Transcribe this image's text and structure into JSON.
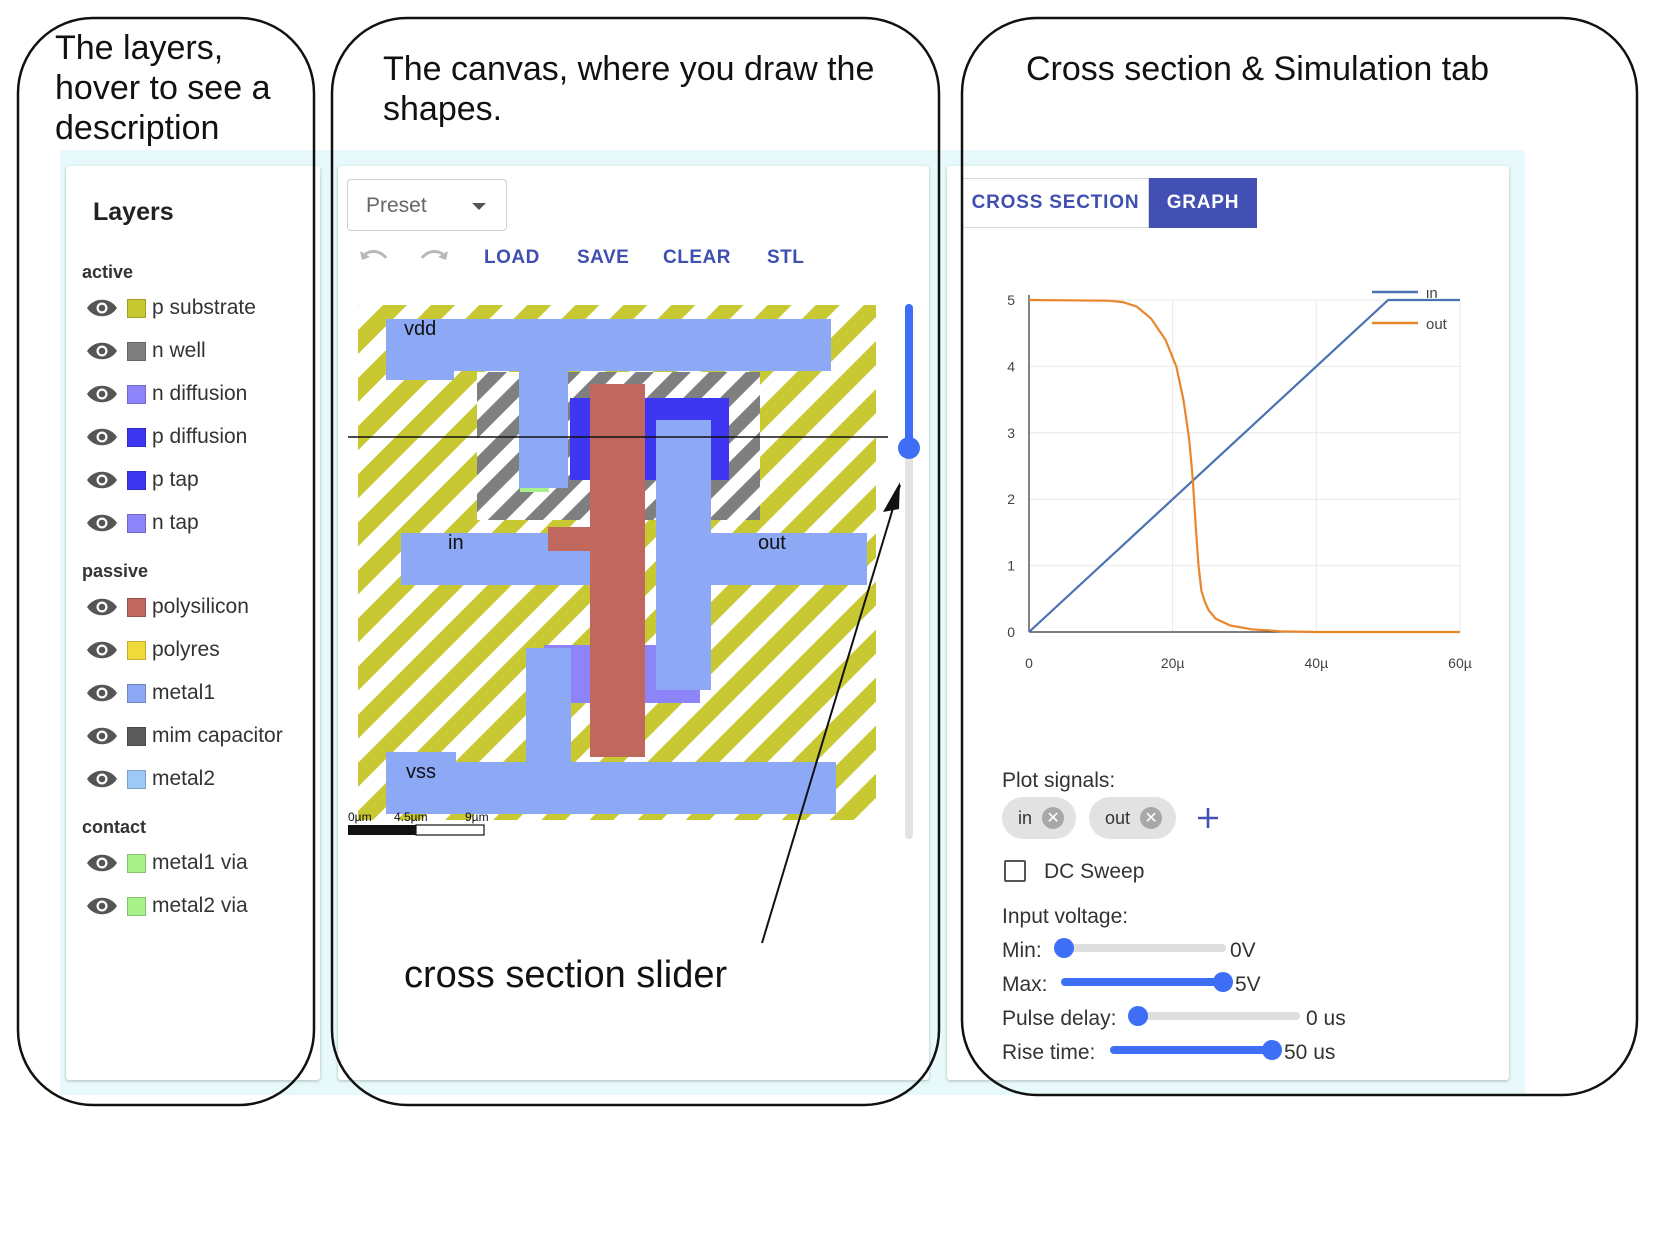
{
  "annotations": {
    "layers": "The layers, hover to see a description",
    "canvas": "The canvas, where you draw the shapes.",
    "simulation": "Cross section & Simulation tab",
    "slider": "cross section slider"
  },
  "layers": {
    "title": "Layers",
    "groups": [
      {
        "label": "active",
        "items": [
          {
            "label": "p substrate",
            "color": "#c8c832",
            "icon": "eye-icon"
          },
          {
            "label": "n well",
            "color": "#7f7f7f",
            "icon": "eye-icon"
          },
          {
            "label": "n diffusion",
            "color": "#8c84f8",
            "icon": "eye-icon"
          },
          {
            "label": "p diffusion",
            "color": "#3e37f2",
            "icon": "eye-icon"
          },
          {
            "label": "p tap",
            "color": "#3e37f2",
            "icon": "eye-icon"
          },
          {
            "label": "n tap",
            "color": "#8c84f8",
            "icon": "eye-icon"
          }
        ]
      },
      {
        "label": "passive",
        "items": [
          {
            "label": "polysilicon",
            "color": "#c0675e",
            "icon": "eye-icon"
          },
          {
            "label": "polyres",
            "color": "#f0d93a",
            "icon": "eye-icon"
          },
          {
            "label": "metal1",
            "color": "#8da8f4",
            "icon": "eye-icon"
          },
          {
            "label": "mim capacitor",
            "color": "#5a5a5a",
            "icon": "eye-icon"
          },
          {
            "label": "metal2",
            "color": "#9ec9f7",
            "icon": "eye-icon"
          }
        ]
      },
      {
        "label": "contact",
        "items": [
          {
            "label": "metal1 via",
            "color": "#a8f08a",
            "icon": "eye-icon"
          },
          {
            "label": "metal2 via",
            "color": "#a8f08a",
            "icon": "eye-icon"
          }
        ]
      }
    ]
  },
  "toolbar": {
    "preset": "Preset",
    "undo_icon": "undo-icon",
    "redo_icon": "redo-icon",
    "load": "LOAD",
    "save": "SAVE",
    "clear": "CLEAR",
    "stl": "STL"
  },
  "canvas": {
    "labels": {
      "vdd": "vdd",
      "in": "in",
      "out": "out",
      "vss": "vss"
    },
    "scale": {
      "t0": "0µm",
      "t1": "4.5µm",
      "t2": "9µm"
    },
    "cross_section_level": 0.27
  },
  "tabs": {
    "cross_section": "CROSS SECTION",
    "graph": "GRAPH",
    "active": "graph"
  },
  "chart_data": {
    "type": "line",
    "x_ticks": [
      "0",
      "20µ",
      "40µ",
      "60µ"
    ],
    "y_ticks": [
      "0",
      "1",
      "2",
      "3",
      "4",
      "5"
    ],
    "xlim": [
      0,
      60
    ],
    "ylim": [
      0,
      5
    ],
    "xunit": "µs",
    "legend_position": "top-right",
    "grid": true,
    "series": [
      {
        "name": "in",
        "color": "#4a72b0",
        "x": [
          0,
          50,
          60
        ],
        "y": [
          0,
          5,
          5
        ]
      },
      {
        "name": "out",
        "color": "#e8862c",
        "x": [
          0,
          11,
          13,
          15,
          17,
          19,
          20.5,
          21.5,
          22.3,
          22.8,
          23.2,
          23.6,
          24,
          24.5,
          25,
          26,
          28,
          31,
          35,
          40,
          60
        ],
        "y": [
          5,
          4.99,
          4.97,
          4.9,
          4.72,
          4.4,
          4.0,
          3.5,
          2.9,
          2.3,
          1.6,
          1.0,
          0.62,
          0.45,
          0.33,
          0.2,
          0.1,
          0.04,
          0.01,
          0,
          0
        ]
      }
    ]
  },
  "simulation": {
    "plot_signals_label": "Plot signals:",
    "signals": [
      {
        "label": "in",
        "remove_icon": "close-circle-icon"
      },
      {
        "label": "out",
        "remove_icon": "close-circle-icon"
      }
    ],
    "add_icon": "plus-icon",
    "dc_sweep_label": "DC Sweep",
    "dc_sweep_checked": false,
    "input_voltage_label": "Input voltage:",
    "sliders": [
      {
        "label": "Min:",
        "value": "0V",
        "level": 0.0
      },
      {
        "label": "Max:",
        "value": "5V",
        "level": 1.0
      },
      {
        "label": "Pulse delay:",
        "value": "0 us",
        "level": 0.0
      },
      {
        "label": "Rise time:",
        "value": "50 us",
        "level": 1.0
      }
    ]
  }
}
